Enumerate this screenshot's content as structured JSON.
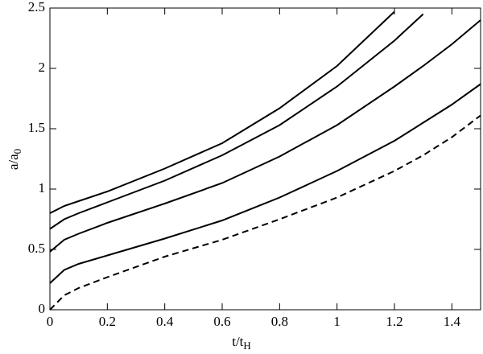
{
  "chart_data": {
    "type": "line",
    "xlabel": {
      "main": "t/t",
      "sub": "H"
    },
    "ylabel": {
      "main": "a/a",
      "sub": "0"
    },
    "x": [
      0,
      0.05,
      0.1,
      0.2,
      0.4,
      0.6,
      0.8,
      1.0,
      1.2,
      1.3,
      1.4,
      1.5
    ],
    "series": [
      {
        "color": "#000000",
        "dashed": false,
        "values": [
          0.8,
          0.86,
          0.9,
          0.98,
          1.17,
          1.38,
          1.67,
          2.02,
          2.47,
          null,
          null,
          null
        ]
      },
      {
        "color": "#000000",
        "dashed": false,
        "values": [
          0.67,
          0.75,
          0.8,
          0.89,
          1.07,
          1.28,
          1.53,
          1.85,
          2.23,
          2.45,
          null,
          null
        ]
      },
      {
        "color": "#000000",
        "dashed": false,
        "values": [
          0.48,
          0.58,
          0.63,
          0.72,
          0.88,
          1.05,
          1.27,
          1.53,
          1.85,
          2.02,
          2.2,
          2.4
        ]
      },
      {
        "color": "#000000",
        "dashed": false,
        "values": [
          0.22,
          0.33,
          0.38,
          0.45,
          0.59,
          0.74,
          0.93,
          1.15,
          1.4,
          1.55,
          1.7,
          1.87
        ]
      },
      {
        "color": "#000000",
        "dashed": true,
        "values": [
          0,
          0.12,
          0.18,
          0.27,
          0.44,
          0.58,
          0.75,
          0.93,
          1.15,
          1.28,
          1.43,
          1.61
        ]
      }
    ],
    "xlim": [
      0,
      1.5
    ],
    "xticks": [
      0,
      0.2,
      0.4,
      0.6,
      0.8,
      1,
      1.2,
      1.4
    ],
    "ylim": [
      0,
      2.5
    ],
    "yticks": [
      0,
      0.5,
      1,
      1.5,
      2,
      2.5
    ],
    "grid": false
  }
}
